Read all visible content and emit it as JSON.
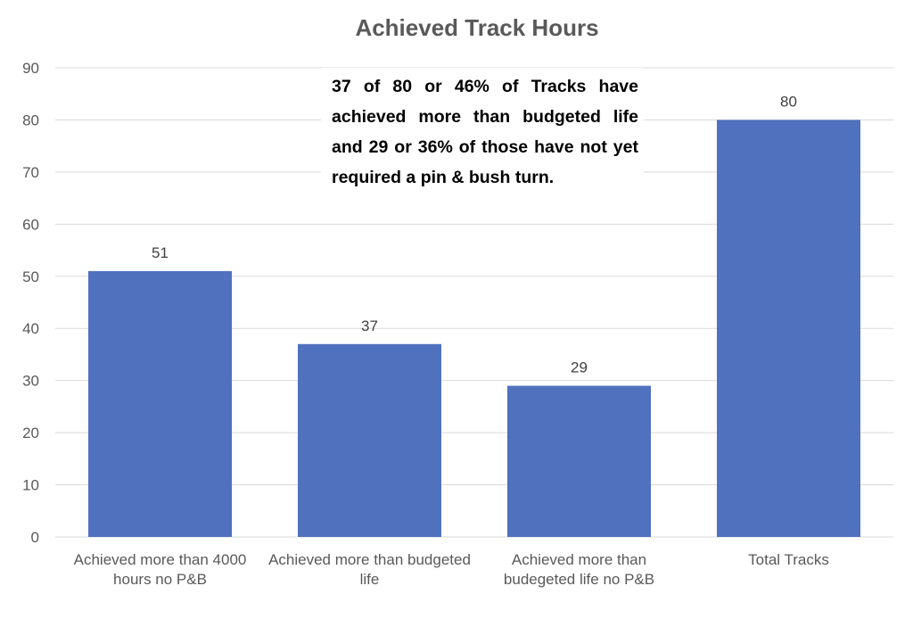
{
  "chart_data": {
    "type": "bar",
    "title": "Achieved Track Hours",
    "categories": [
      [
        "Achieved more than 4000",
        "hours no P&B"
      ],
      [
        "Achieved more than budgeted",
        "life"
      ],
      [
        "Achieved more than",
        "budegeted life no P&B"
      ],
      [
        "Total Tracks"
      ]
    ],
    "values": [
      51,
      37,
      29,
      80
    ],
    "data_labels": [
      "51",
      "37",
      "29",
      "80"
    ],
    "ylim": [
      0,
      90
    ],
    "yticks": [
      0,
      10,
      20,
      30,
      40,
      50,
      60,
      70,
      80,
      90
    ],
    "xlabel": "",
    "ylabel": "",
    "grid": true,
    "legend": "none",
    "bar_color": "#4f71be",
    "annotation": "37 of 80 or 46% of Tracks have achieved more than budgeted life and 29 or 36% of those have not yet required a pin & bush turn."
  }
}
